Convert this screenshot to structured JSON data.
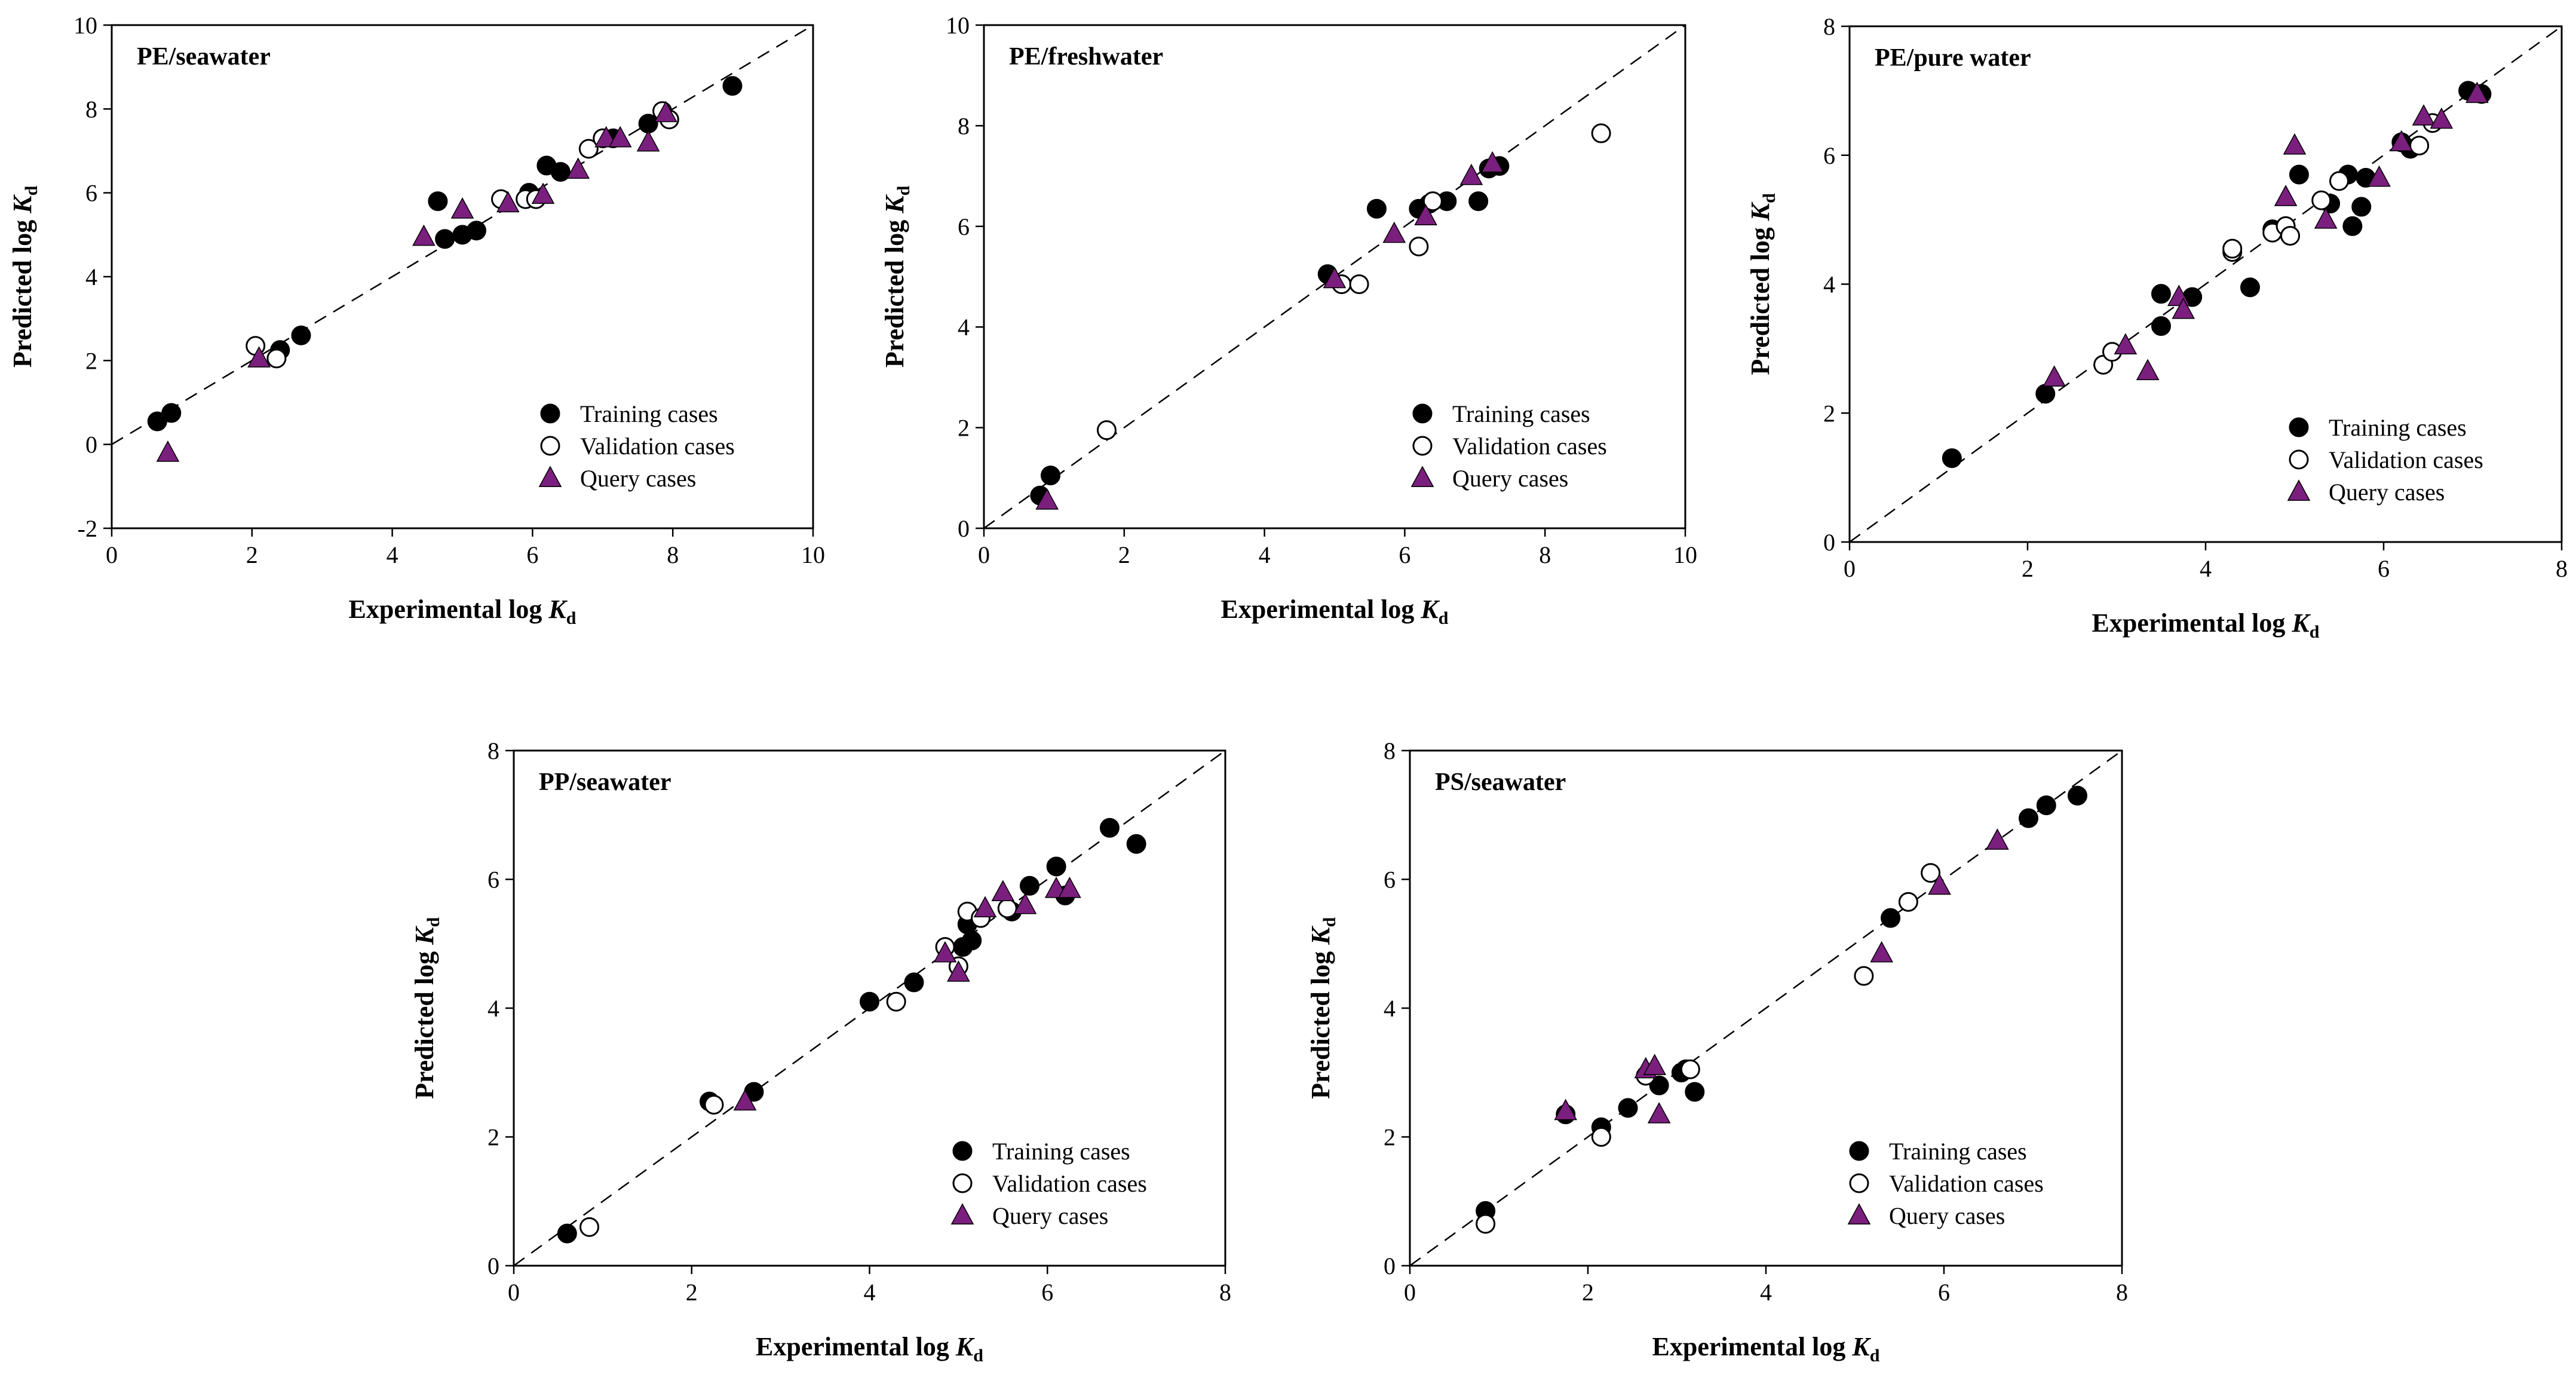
{
  "colors": {
    "training": "#000000",
    "validation": "#ffffff",
    "query": "#7b1f7e",
    "axis": "#000000"
  },
  "legend": {
    "training": "Training cases",
    "validation": "Validation cases",
    "query": "Query cases"
  },
  "chart_data": [
    {
      "type": "scatter",
      "title": "PE/seawater",
      "xlabel": "Experimental log K_d",
      "ylabel": "Predicted log K_d",
      "xlim": [
        0,
        10
      ],
      "ylim": [
        -2,
        10
      ],
      "xticks": [
        0,
        2,
        4,
        6,
        8,
        10
      ],
      "yticks": [
        -2,
        0,
        2,
        4,
        6,
        8,
        10
      ],
      "diagonal": true,
      "legend_position": "bottom-right",
      "series": [
        {
          "name": "Training cases",
          "key": "training",
          "points": [
            [
              0.65,
              0.55
            ],
            [
              0.85,
              0.75
            ],
            [
              2.4,
              2.25
            ],
            [
              2.7,
              2.6
            ],
            [
              4.65,
              5.8
            ],
            [
              4.75,
              4.9
            ],
            [
              5.0,
              5.0
            ],
            [
              5.2,
              5.1
            ],
            [
              5.95,
              6.0
            ],
            [
              6.2,
              6.65
            ],
            [
              6.4,
              6.5
            ],
            [
              7.15,
              7.3
            ],
            [
              7.65,
              7.65
            ],
            [
              8.85,
              8.55
            ]
          ]
        },
        {
          "name": "Validation cases",
          "key": "validation",
          "points": [
            [
              2.05,
              2.35
            ],
            [
              2.35,
              2.05
            ],
            [
              5.55,
              5.85
            ],
            [
              5.9,
              5.85
            ],
            [
              6.05,
              5.85
            ],
            [
              6.8,
              7.05
            ],
            [
              7.0,
              7.3
            ],
            [
              7.85,
              7.95
            ],
            [
              7.95,
              7.75
            ]
          ]
        },
        {
          "name": "Query cases",
          "key": "query",
          "points": [
            [
              0.8,
              -0.2
            ],
            [
              2.1,
              2.05
            ],
            [
              4.45,
              4.95
            ],
            [
              5.0,
              5.6
            ],
            [
              5.65,
              5.75
            ],
            [
              6.15,
              5.95
            ],
            [
              6.65,
              6.55
            ],
            [
              7.05,
              7.3
            ],
            [
              7.25,
              7.3
            ],
            [
              7.65,
              7.2
            ],
            [
              7.9,
              7.9
            ]
          ]
        }
      ]
    },
    {
      "type": "scatter",
      "title": "PE/freshwater",
      "xlabel": "Experimental log K_d",
      "ylabel": "Predicted log K_d",
      "xlim": [
        0,
        10
      ],
      "ylim": [
        0,
        10
      ],
      "xticks": [
        0,
        2,
        4,
        6,
        8,
        10
      ],
      "yticks": [
        0,
        2,
        4,
        6,
        8,
        10
      ],
      "diagonal": true,
      "legend_position": "bottom-right",
      "series": [
        {
          "name": "Training cases",
          "key": "training",
          "points": [
            [
              0.8,
              0.65
            ],
            [
              0.95,
              1.05
            ],
            [
              4.9,
              5.05
            ],
            [
              5.6,
              6.35
            ],
            [
              6.2,
              6.35
            ],
            [
              6.35,
              6.45
            ],
            [
              6.6,
              6.5
            ],
            [
              7.05,
              6.5
            ],
            [
              7.2,
              7.15
            ],
            [
              7.35,
              7.2
            ]
          ]
        },
        {
          "name": "Validation cases",
          "key": "validation",
          "points": [
            [
              1.75,
              1.95
            ],
            [
              5.1,
              4.85
            ],
            [
              5.35,
              4.85
            ],
            [
              6.2,
              5.6
            ],
            [
              6.4,
              6.5
            ],
            [
              8.8,
              7.85
            ]
          ]
        },
        {
          "name": "Query cases",
          "key": "query",
          "points": [
            [
              0.9,
              0.55
            ],
            [
              5.0,
              4.95
            ],
            [
              5.85,
              5.85
            ],
            [
              6.3,
              6.2
            ],
            [
              6.95,
              7.0
            ],
            [
              7.25,
              7.25
            ]
          ]
        }
      ]
    },
    {
      "type": "scatter",
      "title": "PE/pure water",
      "xlabel": "Experimental log K_d",
      "ylabel": "Predicted log K_d",
      "xlim": [
        0,
        8
      ],
      "ylim": [
        0,
        8
      ],
      "xticks": [
        0,
        2,
        4,
        6,
        8
      ],
      "yticks": [
        0,
        2,
        4,
        6,
        8
      ],
      "diagonal": true,
      "legend_position": "bottom-right",
      "series": [
        {
          "name": "Training cases",
          "key": "training",
          "points": [
            [
              1.15,
              1.3
            ],
            [
              2.2,
              2.3
            ],
            [
              3.5,
              3.85
            ],
            [
              3.5,
              3.35
            ],
            [
              3.85,
              3.8
            ],
            [
              4.5,
              3.95
            ],
            [
              4.75,
              4.85
            ],
            [
              5.05,
              5.7
            ],
            [
              5.4,
              5.25
            ],
            [
              5.6,
              5.7
            ],
            [
              5.65,
              4.9
            ],
            [
              5.75,
              5.2
            ],
            [
              5.8,
              5.65
            ],
            [
              6.2,
              6.2
            ],
            [
              6.3,
              6.1
            ],
            [
              6.95,
              7.0
            ],
            [
              7.1,
              6.95
            ]
          ]
        },
        {
          "name": "Validation cases",
          "key": "validation",
          "points": [
            [
              2.85,
              2.75
            ],
            [
              2.95,
              2.95
            ],
            [
              4.3,
              4.5
            ],
            [
              4.3,
              4.55
            ],
            [
              4.75,
              4.8
            ],
            [
              4.9,
              4.9
            ],
            [
              4.95,
              4.75
            ],
            [
              5.3,
              5.3
            ],
            [
              5.5,
              5.6
            ],
            [
              6.4,
              6.15
            ],
            [
              6.55,
              6.5
            ]
          ]
        },
        {
          "name": "Query cases",
          "key": "query",
          "points": [
            [
              2.3,
              2.55
            ],
            [
              3.1,
              3.05
            ],
            [
              3.35,
              2.65
            ],
            [
              3.7,
              3.8
            ],
            [
              3.75,
              3.6
            ],
            [
              4.9,
              5.35
            ],
            [
              5.0,
              6.15
            ],
            [
              5.35,
              5.0
            ],
            [
              5.95,
              5.65
            ],
            [
              6.2,
              6.2
            ],
            [
              6.45,
              6.6
            ],
            [
              6.65,
              6.55
            ],
            [
              7.05,
              6.95
            ]
          ]
        }
      ]
    },
    {
      "type": "scatter",
      "title": "PP/seawater",
      "xlabel": "Experimental log K_d",
      "ylabel": "Predicted log K_d",
      "xlim": [
        0,
        8
      ],
      "ylim": [
        0,
        8
      ],
      "xticks": [
        0,
        2,
        4,
        6,
        8
      ],
      "yticks": [
        0,
        2,
        4,
        6,
        8
      ],
      "diagonal": true,
      "legend_position": "bottom-right",
      "series": [
        {
          "name": "Training cases",
          "key": "training",
          "points": [
            [
              0.6,
              0.5
            ],
            [
              2.2,
              2.55
            ],
            [
              2.7,
              2.7
            ],
            [
              4.0,
              4.1
            ],
            [
              4.5,
              4.4
            ],
            [
              5.05,
              4.95
            ],
            [
              5.1,
              5.3
            ],
            [
              5.15,
              5.05
            ],
            [
              5.6,
              5.5
            ],
            [
              5.8,
              5.9
            ],
            [
              6.1,
              6.2
            ],
            [
              6.2,
              5.75
            ],
            [
              6.7,
              6.8
            ],
            [
              7.0,
              6.55
            ]
          ]
        },
        {
          "name": "Validation cases",
          "key": "validation",
          "points": [
            [
              0.85,
              0.6
            ],
            [
              2.25,
              2.5
            ],
            [
              4.3,
              4.1
            ],
            [
              4.85,
              4.95
            ],
            [
              5.0,
              4.65
            ],
            [
              5.1,
              5.5
            ],
            [
              5.25,
              5.4
            ],
            [
              5.55,
              5.55
            ]
          ]
        },
        {
          "name": "Query cases",
          "key": "query",
          "points": [
            [
              2.6,
              2.55
            ],
            [
              4.85,
              4.85
            ],
            [
              5.0,
              4.55
            ],
            [
              5.3,
              5.55
            ],
            [
              5.5,
              5.8
            ],
            [
              5.75,
              5.6
            ],
            [
              6.1,
              5.85
            ],
            [
              6.25,
              5.85
            ]
          ]
        }
      ]
    },
    {
      "type": "scatter",
      "title": "PS/seawater",
      "xlabel": "Experimental log K_d",
      "ylabel": "Predicted log K_d",
      "xlim": [
        0,
        8
      ],
      "ylim": [
        0,
        8
      ],
      "xticks": [
        0,
        2,
        4,
        6,
        8
      ],
      "yticks": [
        0,
        2,
        4,
        6,
        8
      ],
      "diagonal": true,
      "legend_position": "bottom-right",
      "series": [
        {
          "name": "Training cases",
          "key": "training",
          "points": [
            [
              0.85,
              0.85
            ],
            [
              1.75,
              2.35
            ],
            [
              2.15,
              2.15
            ],
            [
              2.45,
              2.45
            ],
            [
              2.8,
              2.8
            ],
            [
              3.05,
              3.0
            ],
            [
              3.1,
              3.05
            ],
            [
              3.2,
              2.7
            ],
            [
              5.4,
              5.4
            ],
            [
              6.95,
              6.95
            ],
            [
              7.15,
              7.15
            ],
            [
              7.5,
              7.3
            ]
          ]
        },
        {
          "name": "Validation cases",
          "key": "validation",
          "points": [
            [
              0.85,
              0.65
            ],
            [
              2.15,
              2.0
            ],
            [
              2.65,
              2.95
            ],
            [
              3.15,
              3.05
            ],
            [
              5.1,
              4.5
            ],
            [
              5.6,
              5.65
            ],
            [
              5.85,
              6.1
            ]
          ]
        },
        {
          "name": "Query cases",
          "key": "query",
          "points": [
            [
              1.75,
              2.4
            ],
            [
              2.65,
              3.05
            ],
            [
              2.75,
              3.1
            ],
            [
              2.8,
              2.35
            ],
            [
              5.3,
              4.85
            ],
            [
              5.95,
              5.9
            ],
            [
              6.6,
              6.6
            ]
          ]
        }
      ]
    }
  ]
}
